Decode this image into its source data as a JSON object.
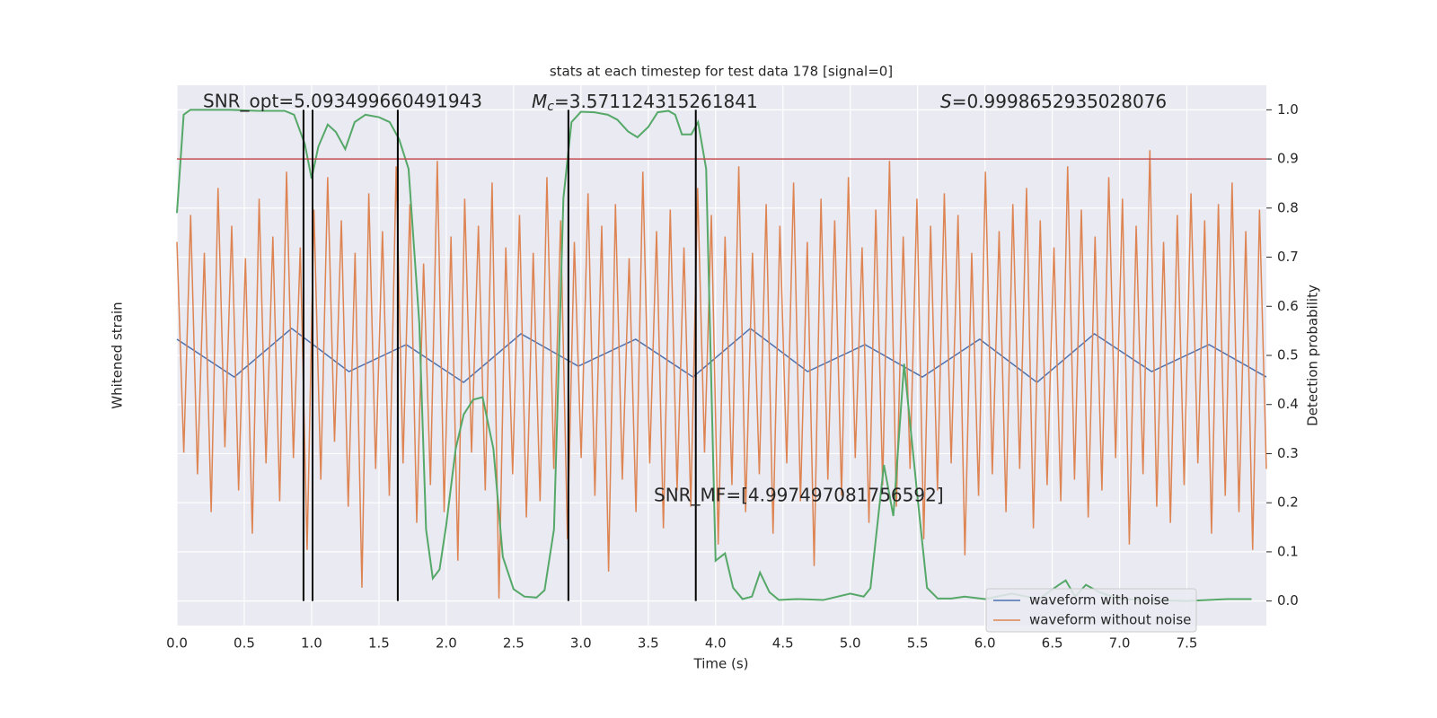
{
  "chart_data": {
    "type": "line",
    "title": "stats at each timestep for test data 178 [signal=0]",
    "x_label": "Time (s)",
    "y_label": "Whitened strain",
    "y2_label": "Detection probability",
    "xlim": [
      0,
      8.09
    ],
    "xticks": [
      {
        "value": 0,
        "label": "0.0"
      },
      {
        "value": 0.5,
        "label": "0.5"
      },
      {
        "value": 1,
        "label": "1.0"
      },
      {
        "value": 1.5,
        "label": "1.5"
      },
      {
        "value": 2,
        "label": "2.0"
      },
      {
        "value": 2.5,
        "label": "2.5"
      },
      {
        "value": 3,
        "label": "3.0"
      },
      {
        "value": 3.5,
        "label": "3.5"
      },
      {
        "value": 4,
        "label": "4.0"
      },
      {
        "value": 4.5,
        "label": "4.5"
      },
      {
        "value": 5,
        "label": "5.0"
      },
      {
        "value": 5.5,
        "label": "5.5"
      },
      {
        "value": 6,
        "label": "6.0"
      },
      {
        "value": 6.5,
        "label": "6.5"
      },
      {
        "value": 7,
        "label": "7.0"
      },
      {
        "value": 7.5,
        "label": "7.5"
      }
    ],
    "ylim": [
      -5,
      5
    ],
    "y2lim": [
      -0.05,
      1.05
    ],
    "y2ticks": [
      {
        "value": 0,
        "label": "0.0"
      },
      {
        "value": 0.1,
        "label": "0.1"
      },
      {
        "value": 0.2,
        "label": "0.2"
      },
      {
        "value": 0.3,
        "label": "0.3"
      },
      {
        "value": 0.4,
        "label": "0.4"
      },
      {
        "value": 0.5,
        "label": "0.5"
      },
      {
        "value": 0.6,
        "label": "0.6"
      },
      {
        "value": 0.7,
        "label": "0.7"
      },
      {
        "value": 0.8,
        "label": "0.8"
      },
      {
        "value": 0.9,
        "label": "0.9"
      },
      {
        "value": 1,
        "label": "1.0"
      }
    ],
    "grid": true,
    "legend": "lower right",
    "series": [
      {
        "name": "waveform with noise",
        "color": "#4c72b0",
        "values": [
          0.3,
          -0.4,
          0.5,
          -0.3,
          0.2,
          -0.5,
          0.4,
          -0.2,
          0.3,
          -0.4,
          0.5,
          -0.3,
          0.2,
          -0.4,
          0.3,
          -0.5,
          0.4,
          -0.3,
          0.2,
          -0.4
        ]
      },
      {
        "name": "waveform without noise",
        "color": "#dd8452",
        "values": [
          2.1,
          -1.8,
          2.6,
          -2.2,
          1.9,
          -2.9,
          3.1,
          -1.7,
          2.4,
          -2.5,
          1.8,
          -3.3,
          2.9,
          -2.0,
          2.2,
          -2.7,
          3.4,
          -1.9,
          2.0,
          -3.6,
          2.7,
          -2.3,
          3.3,
          -1.6,
          2.5,
          -2.8,
          1.9,
          -4.3,
          3.0,
          -2.1,
          2.3,
          -2.6,
          3.5,
          -2.0,
          2.8,
          -3.1,
          1.7,
          -2.4,
          3.6,
          -2.9,
          2.2,
          -3.8,
          2.9,
          -1.8,
          2.4,
          -2.5,
          3.2,
          -4.5,
          2.0,
          -2.2,
          2.6,
          -3.0,
          1.9,
          -2.7,
          3.3,
          -2.1,
          2.5,
          -3.4,
          2.1,
          -1.9,
          3.0,
          -2.6,
          2.4,
          -4.0,
          2.8,
          -2.3,
          1.8,
          -2.9,
          3.4,
          -2.0,
          2.3,
          -3.2,
          2.7,
          -2.5,
          2.0,
          -2.8,
          3.1,
          -1.8,
          2.6,
          -3.5,
          2.2,
          -2.4,
          3.5,
          -2.9,
          1.9,
          -2.2,
          2.8,
          -3.3,
          2.4,
          -2.0,
          3.2,
          -2.7,
          2.1,
          -3.9,
          2.9,
          -2.3,
          2.5,
          -2.6,
          3.3,
          -1.9,
          2.0,
          -3.1,
          2.7,
          -2.4,
          3.6,
          -2.8,
          2.2,
          -2.1,
          2.9,
          -3.4,
          2.4,
          -2.5,
          3.0,
          -2.0,
          2.6,
          -3.7,
          1.9,
          -2.6,
          3.4,
          -2.2,
          2.3,
          -2.9,
          2.8,
          -2.1,
          3.1,
          -3.2,
          2.5,
          -2.4,
          2.0,
          -2.7,
          3.5,
          -2.3,
          2.7,
          -3.0,
          2.2,
          -2.5,
          3.3,
          -1.9,
          2.9,
          -3.5,
          2.4,
          -2.2,
          3.8,
          -2.8,
          2.1,
          -3.1,
          2.6,
          -2.4,
          3.0,
          -2.0,
          2.5,
          -3.3,
          2.8,
          -2.6,
          3.2,
          -2.9,
          2.3,
          -3.6,
          2.7,
          -2.1
        ]
      }
    ],
    "detection": {
      "color": "#55a868",
      "axis": "y2",
      "x": [
        0,
        0.05,
        0.1,
        0.2,
        0.4,
        0.6,
        0.8,
        0.87,
        0.95,
        1.0,
        1.05,
        1.12,
        1.18,
        1.25,
        1.32,
        1.4,
        1.5,
        1.58,
        1.65,
        1.72,
        1.8,
        1.85,
        1.9,
        1.95,
        2.0,
        2.07,
        2.13,
        2.2,
        2.27,
        2.35,
        2.42,
        2.5,
        2.58,
        2.67,
        2.73,
        2.8,
        2.87,
        2.93,
        3.0,
        3.1,
        3.2,
        3.27,
        3.35,
        3.42,
        3.5,
        3.57,
        3.65,
        3.7,
        3.75,
        3.82,
        3.87,
        3.93,
        4.0,
        4.07,
        4.13,
        4.2,
        4.27,
        4.33,
        4.4,
        4.47,
        4.6,
        4.8,
        5.0,
        5.1,
        5.15,
        5.25,
        5.32,
        5.4,
        5.5,
        5.57,
        5.65,
        5.75,
        5.85,
        6.0,
        6.2,
        6.4,
        6.55,
        6.6,
        6.67,
        6.75,
        6.85,
        7.0,
        7.2,
        7.5,
        7.8,
        7.98
      ],
      "values": [
        0.79,
        0.99,
        1.0,
        1.0,
        1.0,
        0.998,
        0.998,
        0.99,
        0.93,
        0.86,
        0.925,
        0.97,
        0.955,
        0.92,
        0.975,
        0.99,
        0.985,
        0.975,
        0.94,
        0.88,
        0.565,
        0.146,
        0.046,
        0.064,
        0.155,
        0.31,
        0.38,
        0.41,
        0.415,
        0.31,
        0.09,
        0.024,
        0.009,
        0.007,
        0.022,
        0.146,
        0.82,
        0.975,
        0.996,
        0.995,
        0.99,
        0.98,
        0.956,
        0.944,
        0.965,
        0.995,
        0.998,
        0.99,
        0.95,
        0.95,
        0.975,
        0.88,
        0.082,
        0.097,
        0.027,
        0.004,
        0.009,
        0.058,
        0.018,
        0.002,
        0.004,
        0.002,
        0.015,
        0.009,
        0.026,
        0.277,
        0.173,
        0.483,
        0.21,
        0.027,
        0.005,
        0.005,
        0.009,
        0.004,
        0.015,
        0.004,
        0.033,
        0.042,
        0.009,
        0.033,
        0.018,
        0.004,
        0.002,
        0.0,
        0.004,
        0.004
      ]
    },
    "threshold": {
      "value": 0.9,
      "color": "#c44e52",
      "axis": "y2"
    },
    "vlines": {
      "values": [
        0.94,
        1.007,
        1.64,
        2.907,
        3.853
      ],
      "color": "#000000"
    },
    "annotations": {
      "snr_opt": "SNR_opt=5.093499660491943",
      "mc": {
        "symbol": "M",
        "subscript": "c",
        "text": "=3.571124315261841"
      },
      "s": {
        "symbol": "S",
        "text": "=0.9998652935028076"
      },
      "snr_mf": "SNR_MF=[4.997497081756592]"
    }
  }
}
